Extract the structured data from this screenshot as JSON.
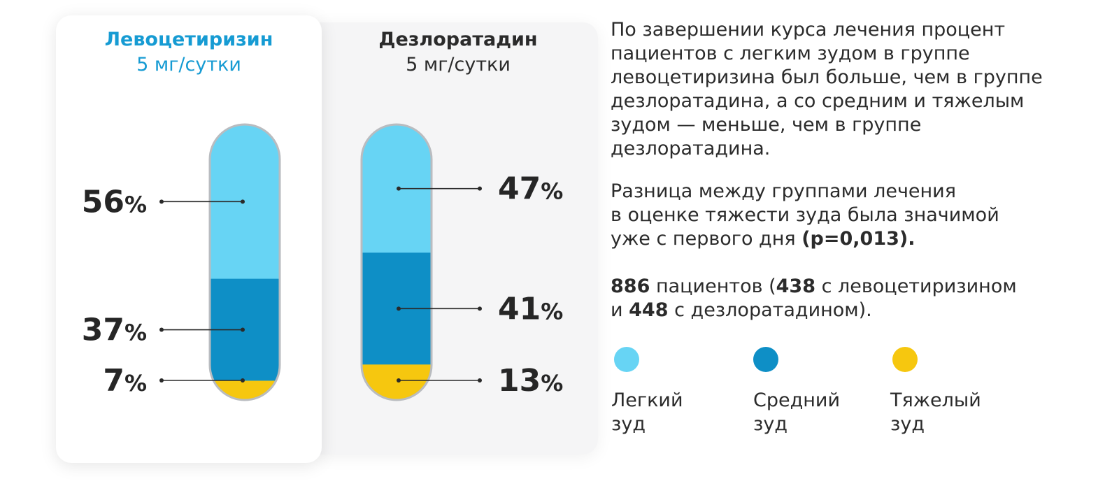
{
  "groups": [
    {
      "name": "Левоцетиризин",
      "dose": "5 мг/сутки"
    },
    {
      "name": "Дезлоратадин",
      "dose": "5 мг/сутки"
    }
  ],
  "chart_data": {
    "type": "bar",
    "stacked": true,
    "unit": "%",
    "categories": [
      "Левоцетиризин 5 мг/сутки",
      "Дезлоратадин 5 мг/сутки"
    ],
    "series": [
      {
        "name": "Легкий зуд",
        "values": [
          56,
          47
        ],
        "color": "#67d4f4"
      },
      {
        "name": "Средний зуд",
        "values": [
          37,
          41
        ],
        "color": "#0e8fc6"
      },
      {
        "name": "Тяжелый зуд",
        "values": [
          7,
          13
        ],
        "color": "#f6c70f"
      }
    ],
    "ylim": [
      0,
      100
    ]
  },
  "text": {
    "p1_lines": [
      "По завершении курса лечения процент",
      "пациентов с легким зудом в группе",
      "левоцетиризина был больше, чем в группе",
      "дезлоратадина, а со средним и тяжелым",
      "зудом — меньше, чем в группе",
      "дезлоратадина."
    ],
    "p2_lines": [
      "Разница между группами лечения",
      "в оценке тяжести зуда была значимой"
    ],
    "p2_last_prefix": "уже с первого дня ",
    "p2_last_bold": "(p=0,013).",
    "p3": {
      "total": "886",
      "t1": " пациентов (",
      "levo_n": "438",
      "t2": " с левоцетиризином",
      "t3": "и ",
      "desl_n": "448",
      "t4": " с дезлоратадином)."
    }
  },
  "legend": [
    {
      "line1": "Легкий",
      "line2": "зуд",
      "color": "#67d4f4"
    },
    {
      "line1": "Средний",
      "line2": "зуд",
      "color": "#0e8fc6"
    },
    {
      "line1": "Тяжелый",
      "line2": "зуд",
      "color": "#f6c70f"
    }
  ]
}
